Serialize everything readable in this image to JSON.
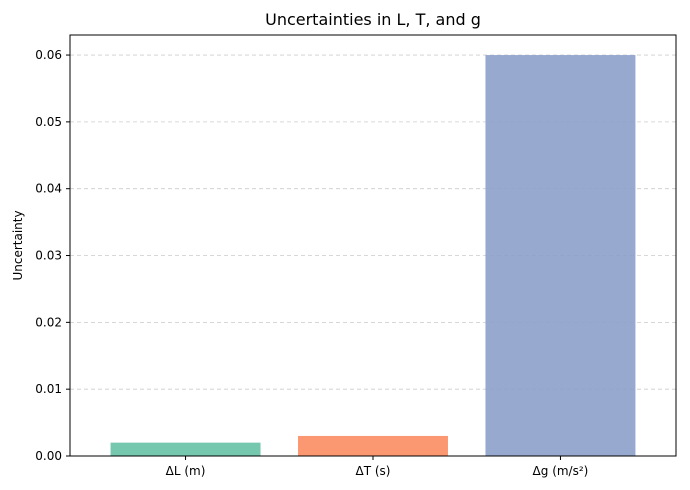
{
  "chart_data": {
    "type": "bar",
    "title": "Uncertainties in L, T, and g",
    "xlabel": "",
    "ylabel": "Uncertainty",
    "categories": [
      "ΔL (m)",
      "ΔT (s)",
      "Δg (m/s²)"
    ],
    "values": [
      0.002,
      0.003,
      0.06
    ],
    "colors": [
      "#66c2a5",
      "#fc8d62",
      "#8da0cb"
    ],
    "ylim": [
      0,
      0.063
    ],
    "yticks": [
      0.0,
      0.01,
      0.02,
      0.03,
      0.04,
      0.05,
      0.06
    ],
    "ytick_labels": [
      "0.00",
      "0.01",
      "0.02",
      "0.03",
      "0.04",
      "0.05",
      "0.06"
    ],
    "grid": "y-dashed",
    "legend": "none"
  }
}
